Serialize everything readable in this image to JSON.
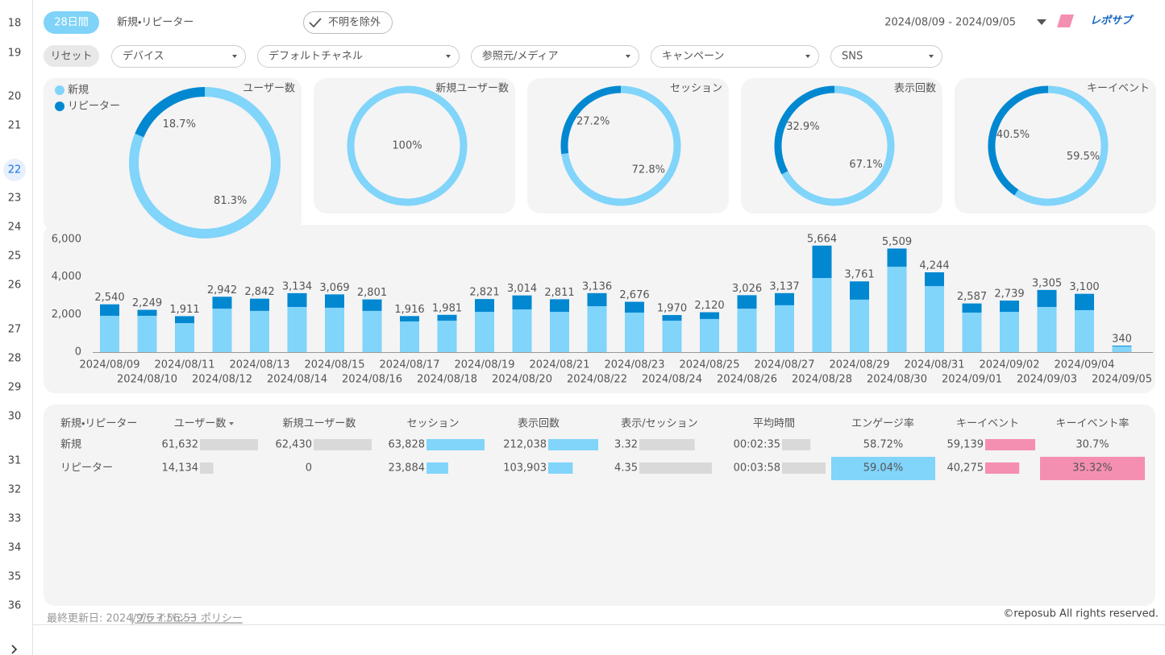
{
  "gutter": {
    "rows": [
      "18",
      "19",
      "20",
      "21",
      "22",
      "23",
      "24",
      "25",
      "26",
      "27",
      "28",
      "29",
      "30",
      "31",
      "32",
      "33",
      "34",
      "35",
      "36"
    ]
  },
  "header": {
    "period": "28日間",
    "title": "新規・リピーター",
    "exclude_unknown": "不明を除外",
    "date_range": "2024/08/09 - 2024/09/05",
    "logo": "レポサブ"
  },
  "filters": {
    "reset": "リセット",
    "dropdowns": [
      "デバイス",
      "デフォルトチャネル",
      "参照元/メディア",
      "キャンペーン",
      "SNS"
    ]
  },
  "donuts": {
    "legend": [
      {
        "name": "新規",
        "color": "#81d4fa"
      },
      {
        "name": "リピーター",
        "color": "#0288d1"
      }
    ],
    "charts": [
      {
        "type": "pie",
        "title": "ユーザー数",
        "values": [
          81.3,
          18.7
        ],
        "value_labels": [
          "81.3%",
          "18.7%"
        ]
      },
      {
        "type": "pie",
        "title": "新規ユーザー数",
        "values": [
          100,
          0
        ],
        "value_labels": [
          "100%",
          null
        ]
      },
      {
        "type": "pie",
        "title": "セッション",
        "values": [
          72.8,
          27.2
        ],
        "value_labels": [
          "72.8%",
          "27.2%"
        ]
      },
      {
        "type": "pie",
        "title": "表示回数",
        "values": [
          67.1,
          32.9
        ],
        "value_labels": [
          "67.1%",
          "32.9%"
        ]
      },
      {
        "type": "pie",
        "title": "キーイベント",
        "values": [
          59.5,
          40.5
        ],
        "value_labels": [
          "59.5%",
          "40.5%"
        ]
      }
    ]
  },
  "bar_chart": {
    "type": "bar",
    "stacked": true,
    "grid": false,
    "categories": [
      "2024/08/09",
      "2024/08/10",
      "2024/08/11",
      "2024/08/12",
      "2024/08/13",
      "2024/08/14",
      "2024/08/15",
      "2024/08/16",
      "2024/08/17",
      "2024/08/18",
      "2024/08/19",
      "2024/08/20",
      "2024/08/21",
      "2024/08/22",
      "2024/08/23",
      "2024/08/24",
      "2024/08/25",
      "2024/08/26",
      "2024/08/27",
      "2024/08/28",
      "2024/08/29",
      "2024/08/30",
      "2024/08/31",
      "2024/09/01",
      "2024/09/02",
      "2024/09/03",
      "2024/09/04",
      "2024/09/05"
    ],
    "series": [
      {
        "color": "#81d4fa",
        "values": [
          1930,
          1930,
          1540,
          2310,
          2190,
          2400,
          2360,
          2190,
          1630,
          1670,
          2140,
          2270,
          2140,
          2440,
          2100,
          1670,
          1760,
          2310,
          2490,
          3940,
          2790,
          4540,
          3510,
          2100,
          2140,
          2400,
          2230,
          300
        ]
      },
      {
        "color": "#0288d1",
        "values": [
          610,
          319,
          371,
          632,
          652,
          734,
          709,
          611,
          286,
          311,
          681,
          744,
          671,
          696,
          576,
          300,
          360,
          716,
          647,
          1724,
          971,
          969,
          734,
          487,
          599,
          905,
          870,
          40
        ]
      }
    ],
    "total_labels": [
      "2,540",
      "2,249",
      "1,911",
      "2,942",
      "2,842",
      "3,134",
      "3,069",
      "2,801",
      "1,916",
      "1,981",
      "2,821",
      "3,014",
      "2,811",
      "3,136",
      "2,676",
      "1,970",
      "2,120",
      "3,026",
      "3,137",
      "5,664",
      "3,761",
      "5,509",
      "4,244",
      "2,587",
      "2,739",
      "3,305",
      "3,100",
      "340"
    ],
    "ylim": [
      0,
      6000
    ],
    "yticks": [
      0,
      {
        "value": 2000,
        "label": "2,000"
      },
      {
        "value": 4000,
        "label": "4,000"
      },
      {
        "value": 6000,
        "label": "6,000"
      }
    ]
  },
  "table": {
    "columns": [
      {
        "label": "新規・リピーター"
      },
      {
        "label": "ユーザー数",
        "sorted": true,
        "style": "bar",
        "color": "#d9d9d9"
      },
      {
        "label": "新規ユーザー数",
        "style": "bar",
        "color": "#d9d9d9"
      },
      {
        "label": "セッション",
        "style": "bar",
        "color": "#81d4fa"
      },
      {
        "label": "表示回数",
        "style": "bar",
        "color": "#81d4fa"
      },
      {
        "label": "表示/セッション",
        "style": "bar",
        "color": "#d9d9d9"
      },
      {
        "label": "平均時間",
        "style": "bar",
        "color": "#d9d9d9"
      },
      {
        "label": "エンゲージ率",
        "style": "heat",
        "color": "#81d4fa"
      },
      {
        "label": "キーイベント",
        "style": "bar",
        "color": "#f48fb1"
      },
      {
        "label": "キーイベント率",
        "style": "heat",
        "color": "#f48fb1"
      }
    ],
    "rows": [
      {
        "label": "新規",
        "cells": [
          {
            "value": 61632,
            "label": "61,632"
          },
          {
            "value": 62430,
            "label": "62,430"
          },
          {
            "value": 63828,
            "label": "63,828"
          },
          {
            "value": 212038,
            "label": "212,038"
          },
          3.32,
          {
            "value": 155,
            "label": "00:02:35"
          },
          {
            "value": 58.72,
            "label": "58.72%"
          },
          {
            "value": 59139,
            "label": "59,139"
          },
          {
            "value": 30.7,
            "label": "30.7%"
          }
        ]
      },
      {
        "label": "リピーター",
        "cells": [
          {
            "value": 14134,
            "label": "14,134"
          },
          0,
          {
            "value": 23884,
            "label": "23,884"
          },
          {
            "value": 103903,
            "label": "103,903"
          },
          4.35,
          {
            "value": 238,
            "label": "00:03:58"
          },
          {
            "value": 59.04,
            "label": "59.04%"
          },
          {
            "value": 40275,
            "label": "40,275"
          },
          {
            "value": 35.32,
            "label": "35.32%"
          }
        ]
      }
    ]
  },
  "footer": {
    "last_updated": "最終更新日: 2024/9/6 7:56:53",
    "separator": "|",
    "privacy": "プライバシー ポリシー",
    "copyright": "©reposub All rights reserved."
  }
}
